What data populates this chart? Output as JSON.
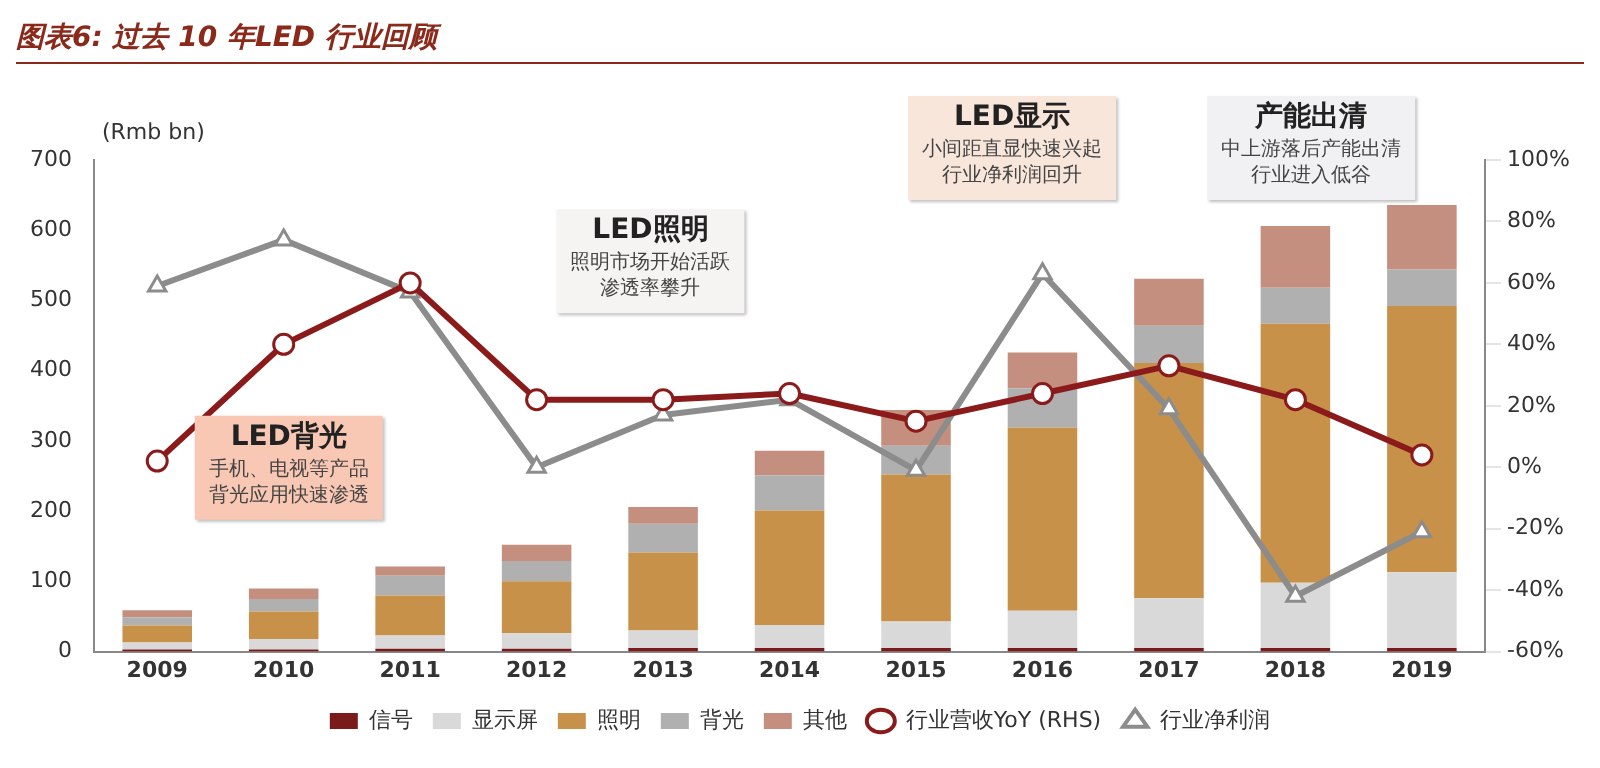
{
  "chart_data": {
    "type": "bar",
    "title": "图表6: 过去 10 年LED 行业回顾",
    "ylabel": "(Rmb bn)",
    "categories": [
      "2009",
      "2010",
      "2011",
      "2012",
      "2013",
      "2014",
      "2015",
      "2016",
      "2017",
      "2018",
      "2019"
    ],
    "stacked": true,
    "grid": false,
    "legend": "bottom",
    "series": [
      {
        "name": "信号",
        "color": "#7b1a1a",
        "values": [
          3,
          3,
          4,
          4,
          5,
          5,
          5,
          5,
          5,
          5,
          5
        ]
      },
      {
        "name": "显示屏",
        "color": "#d9d9d9",
        "values": [
          10,
          15,
          19,
          22,
          25,
          33,
          38,
          53,
          71,
          93,
          108
        ]
      },
      {
        "name": "照明",
        "color": "#c8914a",
        "values": [
          24,
          39,
          57,
          74,
          111,
          163,
          209,
          261,
          335,
          369,
          379
        ]
      },
      {
        "name": "背光",
        "color": "#b0b0b0",
        "values": [
          12,
          18,
          28,
          29,
          41,
          50,
          41,
          56,
          53,
          51,
          52
        ]
      },
      {
        "name": "其他",
        "color": "#c48f7e",
        "values": [
          10,
          15,
          13,
          23,
          24,
          35,
          51,
          51,
          67,
          88,
          92
        ]
      },
      {
        "name": "行业营收YoY (RHS)",
        "type": "line",
        "axis": "y2",
        "marker": "circle",
        "color": "#8b1a1a",
        "values": [
          2,
          40,
          60,
          22,
          22,
          24,
          15,
          24,
          33,
          22,
          4
        ]
      },
      {
        "name": "行业净利润",
        "type": "line",
        "axis": "y2",
        "marker": "triangle",
        "color": "#8c8c8c",
        "values": [
          59,
          74,
          57,
          0,
          17,
          22,
          -1,
          63,
          19,
          -42,
          -21
        ]
      }
    ],
    "ylim": [
      0,
      700
    ],
    "yticks": [
      0,
      100,
      200,
      300,
      400,
      500,
      600,
      700
    ],
    "y2lim": [
      -60,
      100
    ],
    "y2ticks": [
      {
        "value": -60,
        "label": "-60%"
      },
      {
        "value": -40,
        "label": "-40%"
      },
      {
        "value": -20,
        "label": "-20%"
      },
      {
        "value": 0,
        "label": "0%"
      },
      {
        "value": 20,
        "label": "20%"
      },
      {
        "value": 40,
        "label": "40%"
      },
      {
        "value": 60,
        "label": "60%"
      },
      {
        "value": 80,
        "label": "80%"
      },
      {
        "value": 100,
        "label": "100%"
      }
    ],
    "annotations": [
      "LED背光",
      "手机、电视等产品",
      "背光应用快速渗透",
      "LED照明",
      "照明市场开始活跃",
      "渗透率攀升",
      "LED显示",
      "小间距直显快速兴起",
      "行业净利润回升",
      "产能出清",
      "中上游落后产能出清",
      "行业进入低谷"
    ]
  }
}
